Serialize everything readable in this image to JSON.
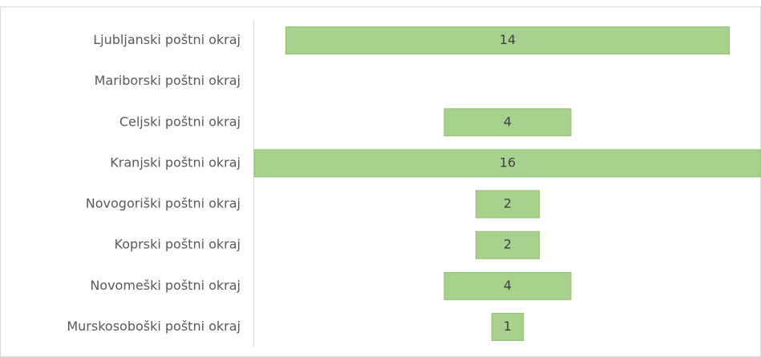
{
  "chart_data": {
    "type": "funnel",
    "categories": [
      "Ljubljanski poštni okraj",
      "Mariborski poštni okraj",
      "Celjski poštni okraj",
      "Kranjski poštni okraj",
      "Novogoriški poštni okraj",
      "Koprski poštni okraj",
      "Novomeški poštni okraj",
      "Murskosoboški poštni okraj"
    ],
    "values": [
      14,
      null,
      4,
      16,
      2,
      2,
      4,
      1
    ],
    "color": "#a9d18e"
  }
}
